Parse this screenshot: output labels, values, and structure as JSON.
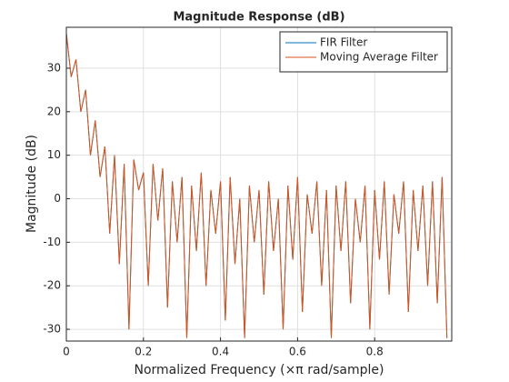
{
  "chart_data": {
    "type": "line",
    "title": "Magnitude Response (dB)",
    "x_label": "Normalized Frequency (×π rad/sample)",
    "y_label": "Magnitude (dB)",
    "x": [
      0,
      0.0125,
      0.025,
      0.0375,
      0.05,
      0.0625,
      0.075,
      0.0875,
      0.1,
      0.1125,
      0.125,
      0.1375,
      0.15,
      0.1625,
      0.175,
      0.1875,
      0.2,
      0.2125,
      0.225,
      0.2375,
      0.25,
      0.2625,
      0.275,
      0.2875,
      0.3,
      0.3125,
      0.325,
      0.3375,
      0.35,
      0.3625,
      0.375,
      0.3875,
      0.4,
      0.4125,
      0.425,
      0.4375,
      0.45,
      0.4625,
      0.475,
      0.4875,
      0.5,
      0.5125,
      0.525,
      0.5375,
      0.55,
      0.5625,
      0.575,
      0.5875,
      0.6,
      0.6125,
      0.625,
      0.6375,
      0.65,
      0.6625,
      0.675,
      0.6875,
      0.7,
      0.7125,
      0.725,
      0.7375,
      0.75,
      0.7625,
      0.775,
      0.7875,
      0.8,
      0.8125,
      0.825,
      0.8375,
      0.85,
      0.8625,
      0.875,
      0.8875,
      0.9,
      0.9125,
      0.925,
      0.9375,
      0.95,
      0.9625,
      0.975,
      0.9875
    ],
    "series": [
      {
        "name": "FIR Filter",
        "color": "#0072BD",
        "values": [
          38,
          28,
          32,
          20,
          25,
          10,
          18,
          5,
          12,
          -8,
          10,
          -15,
          8,
          -30,
          9,
          2,
          6,
          -20,
          8,
          -5,
          7,
          -25,
          4,
          -10,
          5,
          -32,
          3,
          -12,
          6,
          -20,
          2,
          -8,
          4,
          -28,
          5,
          -15,
          0,
          -32,
          3,
          -10,
          2,
          -22,
          4,
          -12,
          0,
          -30,
          3,
          -14,
          5,
          -26,
          1,
          -8,
          4,
          -20,
          2,
          -32,
          3,
          -12,
          4,
          -24,
          0,
          -10,
          3,
          -30,
          2,
          -14,
          4,
          -22,
          1,
          -8,
          4,
          -26,
          2,
          -12,
          3,
          -20,
          4,
          -24,
          5,
          -32
        ]
      },
      {
        "name": "Moving Average Filter",
        "color": "#D95319",
        "values": [
          38,
          28,
          32,
          20,
          25,
          10,
          18,
          5,
          12,
          -8,
          10,
          -15,
          8,
          -30,
          9,
          2,
          6,
          -20,
          8,
          -5,
          7,
          -25,
          4,
          -10,
          5,
          -32,
          3,
          -12,
          6,
          -20,
          2,
          -8,
          4,
          -28,
          5,
          -15,
          0,
          -32,
          3,
          -10,
          2,
          -22,
          4,
          -12,
          0,
          -30,
          3,
          -14,
          5,
          -26,
          1,
          -8,
          4,
          -20,
          2,
          -32,
          3,
          -12,
          4,
          -24,
          0,
          -10,
          3,
          -30,
          2,
          -14,
          4,
          -22,
          1,
          -8,
          4,
          -26,
          2,
          -12,
          3,
          -20,
          4,
          -24,
          5,
          -32
        ]
      }
    ],
    "xlim": [
      0,
      1
    ],
    "xticks": [
      0,
      0.2,
      0.4,
      0.6,
      0.8
    ],
    "ylim": [
      -32.7,
      39.4
    ],
    "yticks": [
      -30,
      -20,
      -10,
      0,
      10,
      20,
      30
    ],
    "grid": true,
    "legend_loc": "northeast"
  }
}
